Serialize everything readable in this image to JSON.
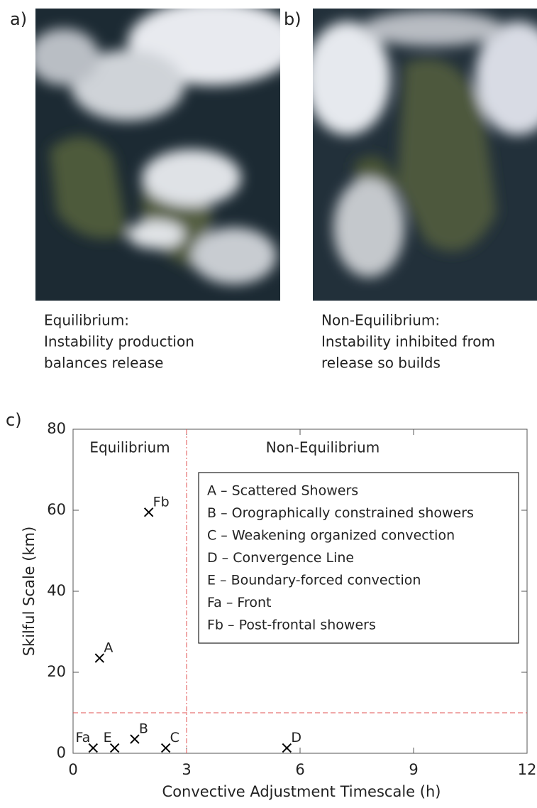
{
  "panels": [
    {
      "label": "a)",
      "caption": [
        "Equilibrium:",
        "Instability production",
        "balances release"
      ]
    },
    {
      "label": "b)",
      "caption": [
        "Non-Equilibrium:",
        "Instability inhibited from",
        "release so builds"
      ]
    }
  ],
  "chart_data": {
    "type": "scatter",
    "panel_label": "c)",
    "x_label": "Convective Adjustment Timescale (h)",
    "y_label": "Skilful Scale (km)",
    "region_labels": [
      "Equilibrium",
      "Non-Equilibrium"
    ],
    "point_labels": [
      "A",
      "Fb",
      "Fa",
      "E",
      "B",
      "C",
      "D"
    ],
    "x": [
      0.7,
      2.0,
      0.53,
      1.1,
      1.63,
      2.45,
      5.65
    ],
    "values": [
      23.5,
      59.5,
      1.3,
      1.3,
      3.5,
      1.3,
      1.3
    ],
    "color": "#000000",
    "threshold_x": 3,
    "threshold_y": 10,
    "threshold_color": "#e05050",
    "legend_entries": [
      "A – Scattered Showers",
      "B – Orographically constrained showers",
      "C – Weakening organized convection",
      "D – Convergence Line",
      "E – Boundary-forced convection",
      "Fa – Front",
      "Fb – Post-frontal showers"
    ],
    "xlim": [
      0,
      12
    ],
    "xticks": [
      0,
      3,
      6,
      9,
      12
    ],
    "ylim": [
      0,
      80
    ],
    "yticks": [
      0,
      20,
      40,
      60,
      80
    ]
  }
}
